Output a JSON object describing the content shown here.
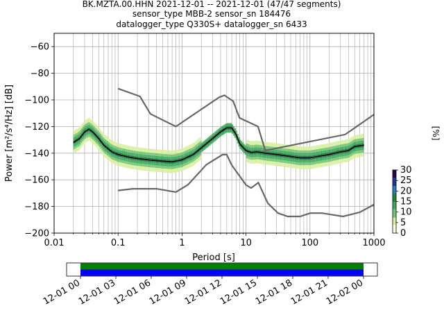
{
  "chart_data": {
    "type": "heatmap",
    "title_lines": [
      "BK.MZTA.00.HHN   2021-12-01 -- 2021-12-01  (47/47 segments)",
      "sensor_type MBB-2 sensor_sn 184476",
      "datalogger_type Q330S+ datalogger_sn 6433"
    ],
    "xlabel": "Period [s]",
    "ylabel": "Power [m²/s⁴/Hz] [dB]",
    "xscale": "log",
    "xlim": [
      0.01,
      1000
    ],
    "ylim": [
      -200,
      -50
    ],
    "x_ticks": [
      0.01,
      0.1,
      1,
      10,
      100,
      1000
    ],
    "x_tick_labels": [
      "0.01",
      "0.1",
      "1",
      "10",
      "100",
      "1000"
    ],
    "y_ticks": [
      -200,
      -180,
      -160,
      -140,
      -120,
      -100,
      -80,
      -60
    ],
    "y_tick_labels": [
      "−200",
      "−180",
      "−160",
      "−140",
      "−120",
      "−100",
      "−80",
      "−60"
    ],
    "grid": true,
    "nhnm": {
      "x": [
        0.1,
        0.22,
        0.32,
        0.8,
        3.8,
        4.6,
        6.3,
        7.9,
        15.4,
        20,
        354.8,
        1000
      ],
      "y": [
        -91.5,
        -97.4,
        -110.5,
        -120,
        -98,
        -96.5,
        -101,
        -113.5,
        -120,
        -138,
        -126,
        -111
      ]
    },
    "nlnm": {
      "x": [
        0.1,
        0.17,
        0.4,
        0.8,
        1.24,
        2.4,
        4.3,
        5,
        6,
        10,
        12,
        15.6,
        21.9,
        31.6,
        45,
        70,
        101,
        154,
        328,
        600,
        1000
      ],
      "y": [
        -168,
        -166.7,
        -166.7,
        -169.2,
        -163.7,
        -148.6,
        -141.1,
        -141.1,
        -149,
        -163.8,
        -166.2,
        -162.1,
        -177.5,
        -185,
        -187.5,
        -187.5,
        -185,
        -185,
        -187.5,
        -184.4,
        -178.6
      ]
    },
    "mode": {
      "x": [
        0.02,
        0.025,
        0.03,
        0.035,
        0.04,
        0.05,
        0.06,
        0.08,
        0.1,
        0.15,
        0.2,
        0.3,
        0.5,
        0.7,
        1,
        1.5,
        2,
        3,
        4,
        5,
        6,
        7,
        8,
        10,
        12,
        15,
        20,
        30,
        50,
        70,
        100,
        150,
        200,
        300,
        400,
        500,
        700
      ],
      "y": [
        -132,
        -129,
        -124,
        -122,
        -124,
        -129,
        -134,
        -139,
        -141,
        -143,
        -144,
        -145,
        -146,
        -146.5,
        -145,
        -141,
        -136,
        -129,
        -124,
        -121,
        -121,
        -126,
        -133,
        -138,
        -139.5,
        -139,
        -140,
        -141,
        -142.5,
        -143.5,
        -143.5,
        -142,
        -141,
        -139,
        -138,
        -135,
        -134
      ]
    },
    "colorbar": {
      "label": "[%]",
      "min": 0,
      "max": 30,
      "ticks": [
        0,
        5,
        10,
        15,
        20,
        25,
        30
      ],
      "tick_labels": [
        "0",
        "5",
        "10",
        "15",
        "20",
        "25",
        "30"
      ],
      "colors": [
        "#ffffe5",
        "#d9f0a3",
        "#78c679",
        "#41ab5d",
        "#238443",
        "#2c7fb8",
        "#253494",
        "#2d004b"
      ]
    },
    "timeline": {
      "tick_labels": [
        "12-01 00",
        "12-01 03",
        "12-01 06",
        "12-01 09",
        "12-01 12",
        "12-01 15",
        "12-01 18",
        "12-01 21",
        "12-02 00"
      ],
      "bar_colors": [
        "#008000",
        "#0000ff"
      ]
    }
  }
}
